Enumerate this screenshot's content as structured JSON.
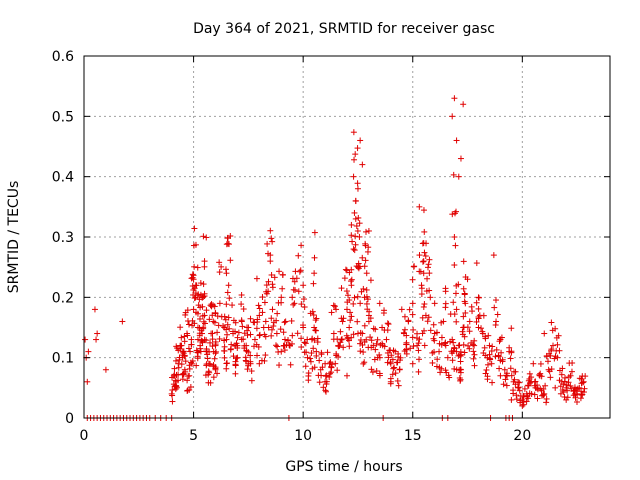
{
  "chart_data": {
    "type": "scatter",
    "title": "Day 364 of 2021, SRMTID for receiver gasc",
    "xlabel": "GPS time / hours",
    "ylabel": "SRMTID / TECUs",
    "xlim": [
      0,
      24
    ],
    "ylim": [
      0,
      0.6
    ],
    "x_ticks": [
      0,
      5,
      10,
      15,
      20
    ],
    "x_tick_labels": [
      "0",
      "5",
      "10",
      "15",
      "20"
    ],
    "y_ticks": [
      0,
      0.1,
      0.2,
      0.3,
      0.4,
      0.5,
      0.6
    ],
    "y_tick_labels": [
      "0",
      "0.1",
      "0.2",
      "0.3",
      "0.4",
      "0.5",
      "0.6"
    ],
    "grid": true,
    "marker": "plus",
    "color": "#e00000",
    "series": [
      {
        "name": "SRMTID",
        "x": [
          0.05,
          0.1,
          0.15,
          0.2,
          0.5,
          0.55,
          0.6,
          1.0,
          1.75,
          4.0,
          4.1,
          4.2,
          4.3,
          4.4,
          4.5,
          4.6,
          4.7,
          4.8,
          4.9,
          5.0,
          5.1,
          5.2,
          5.3,
          5.4,
          5.5,
          5.6,
          5.7,
          5.8,
          5.9,
          6.0,
          6.2,
          6.4,
          6.5,
          6.6,
          6.8,
          7.0,
          7.2,
          7.4,
          7.6,
          7.8,
          8.0,
          8.2,
          8.4,
          8.5,
          8.6,
          8.8,
          9.0,
          9.2,
          9.4,
          9.6,
          9.8,
          10.0,
          10.2,
          10.4,
          10.5,
          10.6,
          10.8,
          11.0,
          11.2,
          11.4,
          11.6,
          11.8,
          12.0,
          12.1,
          12.2,
          12.3,
          12.4,
          12.5,
          12.6,
          12.7,
          12.8,
          12.9,
          13.0,
          13.2,
          13.4,
          13.6,
          13.8,
          14.0,
          14.2,
          14.4,
          14.6,
          14.8,
          15.0,
          15.2,
          15.4,
          15.5,
          15.6,
          15.8,
          16.0,
          16.2,
          16.4,
          16.6,
          16.8,
          16.9,
          17.0,
          17.1,
          17.2,
          17.3,
          17.4,
          17.6,
          17.8,
          18.0,
          18.2,
          18.4,
          18.6,
          18.8,
          19.0,
          19.2,
          19.4,
          19.6,
          19.8,
          20.0,
          20.2,
          20.4,
          20.6,
          20.8,
          21.0,
          21.2,
          21.4,
          21.6,
          21.8,
          22.0,
          22.2,
          22.4,
          22.6,
          22.8,
          5.0,
          5.2,
          5.5,
          6.0,
          6.5,
          7.0,
          7.5,
          8.0,
          8.5,
          9.0,
          9.5,
          10.0,
          10.5,
          11.0,
          11.5,
          12.0,
          12.5,
          13.0,
          13.5,
          14.0,
          14.5,
          15.0,
          15.5,
          16.0,
          16.5,
          17.0,
          17.5,
          18.0,
          18.5,
          19.0,
          19.5,
          20.0,
          20.5,
          21.0,
          21.5,
          22.0,
          22.5,
          12.2,
          12.3,
          12.4,
          12.5,
          12.6,
          12.7,
          13.0,
          15.3,
          15.5,
          16.8,
          16.9,
          17.0,
          17.1,
          17.2,
          17.3,
          18.7
        ],
        "y": [
          0.13,
          0.1,
          0.06,
          0.11,
          0.18,
          0.13,
          0.14,
          0.08,
          0.16,
          0.04,
          0.07,
          0.06,
          0.09,
          0.12,
          0.1,
          0.08,
          0.14,
          0.07,
          0.13,
          0.18,
          0.22,
          0.15,
          0.12,
          0.2,
          0.17,
          0.11,
          0.09,
          0.14,
          0.16,
          0.12,
          0.19,
          0.15,
          0.13,
          0.22,
          0.14,
          0.1,
          0.16,
          0.12,
          0.09,
          0.13,
          0.17,
          0.15,
          0.21,
          0.26,
          0.18,
          0.14,
          0.2,
          0.16,
          0.12,
          0.19,
          0.21,
          0.15,
          0.1,
          0.13,
          0.24,
          0.11,
          0.08,
          0.06,
          0.09,
          0.14,
          0.12,
          0.16,
          0.18,
          0.15,
          0.22,
          0.28,
          0.36,
          0.25,
          0.19,
          0.14,
          0.2,
          0.24,
          0.17,
          0.12,
          0.1,
          0.15,
          0.13,
          0.09,
          0.11,
          0.08,
          0.14,
          0.16,
          0.19,
          0.12,
          0.22,
          0.26,
          0.17,
          0.2,
          0.14,
          0.11,
          0.16,
          0.1,
          0.13,
          0.3,
          0.18,
          0.12,
          0.08,
          0.15,
          0.19,
          0.16,
          0.12,
          0.2,
          0.14,
          0.1,
          0.09,
          0.16,
          0.13,
          0.08,
          0.11,
          0.06,
          0.05,
          0.03,
          0.04,
          0.06,
          0.05,
          0.07,
          0.04,
          0.08,
          0.12,
          0.1,
          0.06,
          0.05,
          0.07,
          0.04,
          0.05,
          0.06,
          0.23,
          0.13,
          0.26,
          0.08,
          0.24,
          0.12,
          0.15,
          0.09,
          0.27,
          0.11,
          0.2,
          0.22,
          0.15,
          0.09,
          0.18,
          0.07,
          0.14,
          0.16,
          0.1,
          0.06,
          0.18,
          0.09,
          0.24,
          0.19,
          0.21,
          0.11,
          0.23,
          0.15,
          0.12,
          0.07,
          0.03,
          0.02,
          0.09,
          0.14,
          0.05,
          0.03,
          0.04,
          0.32,
          0.4,
          0.33,
          0.38,
          0.46,
          0.42,
          0.31,
          0.35,
          0.29,
          0.5,
          0.53,
          0.46,
          0.4,
          0.43,
          0.52,
          0.27
        ]
      }
    ],
    "zero_x": [
      0.15,
      0.3,
      0.45,
      0.6,
      0.75,
      0.9,
      1.05,
      1.2,
      1.35,
      1.5,
      1.65,
      1.8,
      1.95,
      2.1,
      2.25,
      2.4,
      2.55,
      2.7,
      2.85,
      3.0,
      3.25,
      3.5,
      3.75,
      4.0,
      9.35,
      13.65,
      16.35,
      16.6,
      18.55,
      19.25,
      19.4,
      19.55
    ]
  }
}
